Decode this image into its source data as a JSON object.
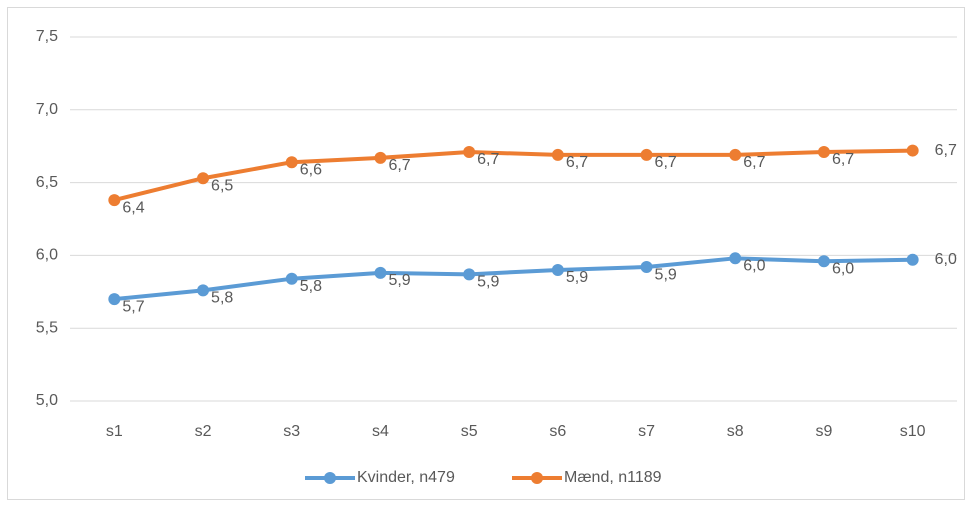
{
  "chart_data": {
    "type": "line",
    "categories": [
      "s1",
      "s2",
      "s3",
      "s4",
      "s5",
      "s6",
      "s7",
      "s8",
      "s9",
      "s10"
    ],
    "series": [
      {
        "name": "Kvinder, n479",
        "color": "#5b9bd5",
        "values": [
          5.7,
          5.76,
          5.84,
          5.88,
          5.87,
          5.9,
          5.92,
          5.98,
          5.96,
          5.97
        ],
        "value_labels": [
          "5,7",
          "5,8",
          "5,8",
          "5,9",
          "5,9",
          "5,9",
          "5,9",
          "6,0",
          "6,0",
          "6,0"
        ]
      },
      {
        "name": "Mænd, n1189",
        "color": "#ed7d31",
        "values": [
          6.38,
          6.53,
          6.64,
          6.67,
          6.71,
          6.69,
          6.69,
          6.69,
          6.71,
          6.72
        ],
        "value_labels": [
          "6,4",
          "6,5",
          "6,6",
          "6,7",
          "6,7",
          "6,7",
          "6,7",
          "6,7",
          "6,7",
          "6,7"
        ]
      }
    ],
    "ylim": [
      5.0,
      7.5
    ],
    "yticks": [
      {
        "value": 5.0,
        "label": "5,0"
      },
      {
        "value": 5.5,
        "label": "5,5"
      },
      {
        "value": 6.0,
        "label": "6,0"
      },
      {
        "value": 6.5,
        "label": "6,5"
      },
      {
        "value": 7.0,
        "label": "7,0"
      },
      {
        "value": 7.5,
        "label": "7,5"
      }
    ],
    "grid": true,
    "legend": "bottom"
  }
}
